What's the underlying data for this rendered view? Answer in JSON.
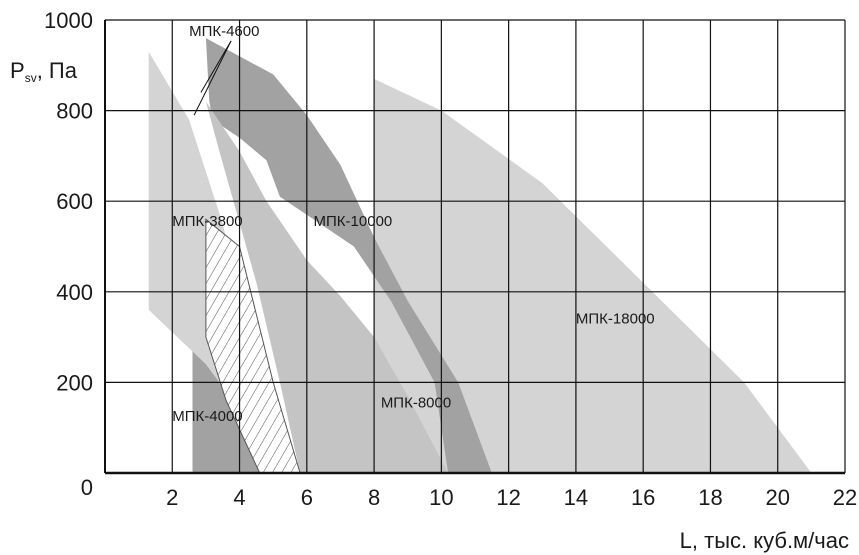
{
  "chart_data": {
    "type": "area",
    "ylabel": "P",
    "ylabel_sub": "sv",
    "ylabel_suffix": ", Па",
    "xlabel": "L, тыс. куб.м/час",
    "xlim": [
      0,
      22
    ],
    "ylim": [
      0,
      1000
    ],
    "xticks": [
      2,
      4,
      6,
      8,
      10,
      12,
      14,
      16,
      18,
      20,
      22
    ],
    "yticks": [
      0,
      200,
      400,
      600,
      800,
      1000
    ],
    "grid": true,
    "colors": {
      "light": "#d4d4d4",
      "medium": "#c4c4c4",
      "dark": "#a2a2a2",
      "grid": "#111111",
      "hatch": "#555555"
    },
    "series": [
      {
        "name": "МПК-18000",
        "shade": "light",
        "polygon": [
          [
            8,
            0
          ],
          [
            8,
            870
          ],
          [
            10,
            800
          ],
          [
            13,
            640
          ],
          [
            16,
            420
          ],
          [
            19,
            200
          ],
          [
            21,
            0
          ]
        ],
        "label_at": [
          14,
          330
        ]
      },
      {
        "name": "МПК-10000",
        "shade": "dark",
        "polygon": [
          [
            3,
            960
          ],
          [
            5,
            880
          ],
          [
            6,
            790
          ],
          [
            7,
            680
          ],
          [
            8,
            520
          ],
          [
            9,
            380
          ],
          [
            10.5,
            200
          ],
          [
            11.5,
            0
          ],
          [
            10.2,
            0
          ],
          [
            9.8,
            200
          ],
          [
            8.5,
            380
          ],
          [
            7.4,
            500
          ],
          [
            6.2,
            560
          ],
          [
            5.2,
            610
          ],
          [
            4.8,
            690
          ],
          [
            4,
            740
          ],
          [
            3.2,
            780
          ],
          [
            3.1,
            820
          ]
        ],
        "label_at": [
          6.2,
          545
        ]
      },
      {
        "name": "МПК-8000",
        "shade": "medium",
        "polygon": [
          [
            3,
            820
          ],
          [
            4,
            710
          ],
          [
            4.8,
            600
          ],
          [
            6,
            470
          ],
          [
            7,
            390
          ],
          [
            8,
            300
          ],
          [
            9,
            170
          ],
          [
            10.2,
            0
          ],
          [
            5.8,
            0
          ],
          [
            5.2,
            200
          ],
          [
            4.5,
            420
          ],
          [
            3.4,
            710
          ]
        ],
        "label_at": [
          8.2,
          145
        ]
      },
      {
        "name": "МПК-4000",
        "shade": "dark",
        "polygon": [
          [
            2.6,
            0
          ],
          [
            2.6,
            280
          ],
          [
            4,
            170
          ],
          [
            4.8,
            80
          ],
          [
            5.3,
            0
          ]
        ],
        "label_at": [
          2,
          115
        ]
      },
      {
        "name": "МПК-3800",
        "shade": "light",
        "polygon": [
          [
            1.3,
            930
          ],
          [
            2.5,
            780
          ],
          [
            3.5,
            550
          ],
          [
            4.5,
            230
          ],
          [
            5.8,
            0
          ],
          [
            4.8,
            0
          ],
          [
            4.2,
            120
          ],
          [
            3,
            240
          ],
          [
            1.3,
            360
          ]
        ],
        "label_at": [
          2,
          545
        ]
      },
      {
        "name": "МПК-4600",
        "shade": "hatch",
        "polygon": [
          [
            3,
            560
          ],
          [
            4,
            500
          ],
          [
            5,
            200
          ],
          [
            5.8,
            0
          ],
          [
            4.6,
            0
          ],
          [
            3.6,
            160
          ],
          [
            3,
            300
          ]
        ],
        "label_at": [
          2.5,
          965
        ],
        "leader_to": [
          [
            2.85,
            840
          ],
          [
            2.65,
            790
          ]
        ]
      }
    ]
  }
}
